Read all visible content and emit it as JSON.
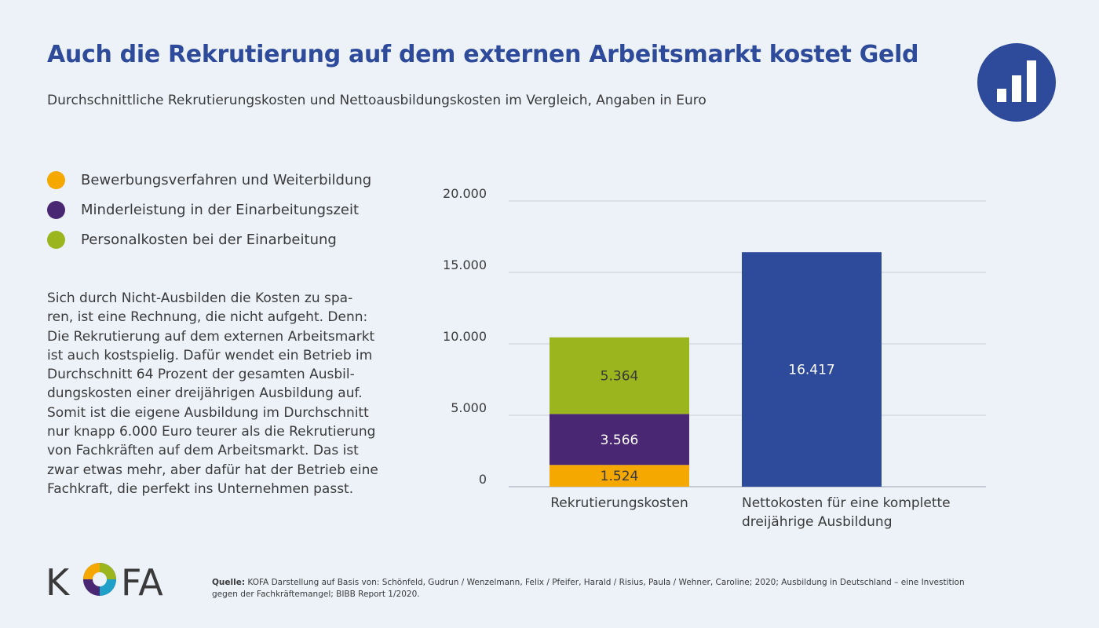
{
  "title": "Auch die Rekrutierung auf dem externen Arbeitsmarkt kostet Geld",
  "subtitle": "Durchschnittliche Rekrutierungskosten und Nettoausbildungskosten im Vergleich, Angaben in Euro",
  "badge_icon": "bar-chart-icon",
  "legend": [
    {
      "label": "Bewerbungsverfahren und Weiterbildung",
      "color": "#f4a800"
    },
    {
      "label": "Minderleistung in der Einarbeitungszeit",
      "color": "#4a2772"
    },
    {
      "label": "Personalkosten bei der Einarbeitung",
      "color": "#9ab51d"
    }
  ],
  "body_lines": [
    "Sich durch Nicht-Ausbilden die Kosten zu spa-",
    "ren, ist eine Rechnung, die nicht aufgeht. Denn:",
    "Die Rekrutierung auf dem externen Arbeitsmarkt",
    "ist auch kostspielig. Dafür wendet ein Betrieb im",
    "Durchschnitt 64 Prozent der gesamten Ausbil-",
    "dungskosten einer dreijährigen Ausbildung auf.",
    "Somit ist die eigene Ausbildung im Durchschnitt",
    "nur knapp 6.000 Euro teurer als die Rekrutierung",
    "von Fachkräften auf dem Arbeitsmarkt. Das ist",
    "zwar etwas mehr, aber dafür hat der Betrieb eine",
    "Fachkraft, die perfekt ins Unternehmen passt."
  ],
  "chart_data": {
    "type": "bar",
    "stacked": true,
    "categories": [
      [
        "Rekrutierungskosten"
      ],
      [
        "Nettokosten für eine komplette",
        "dreijährige Ausbildung"
      ]
    ],
    "segments": [
      [
        {
          "series": "Bewerbungsverfahren und Weiterbildung",
          "value": 1524,
          "label": "1.524",
          "color": "#f4a800",
          "text_color": "#3a3a3a"
        },
        {
          "series": "Minderleistung in der Einarbeitungszeit",
          "value": 3566,
          "label": "3.566",
          "color": "#4a2772",
          "text_color": "#ffffff"
        },
        {
          "series": "Personalkosten bei der Einarbeitung",
          "value": 5364,
          "label": "5.364",
          "color": "#9ab51d",
          "text_color": "#3a3a3a"
        }
      ],
      [
        {
          "series": "",
          "value": 16417,
          "label": "16.417",
          "color": "#2e4a9b",
          "text_color": "#ffffff"
        }
      ]
    ],
    "ylim": [
      0,
      20000
    ],
    "yticks": [
      0,
      5000,
      10000,
      15000,
      20000
    ],
    "ytick_labels": [
      "0",
      "5.000",
      "10.000",
      "15.000",
      "20.000"
    ],
    "grid": true,
    "legend_position": "left"
  },
  "logo_text": "KOFA",
  "source_label": "Quelle:",
  "source_text": "KOFA Darstellung auf Basis von: Schönfeld, Gudrun / Wenzelmann, Felix / Pfeifer, Harald / Risius, Paula / Wehner, Caroline; 2020; Ausbildung in Deutschland – eine Investition gegen der Fachkräftemangel; BIBB Report 1/2020."
}
